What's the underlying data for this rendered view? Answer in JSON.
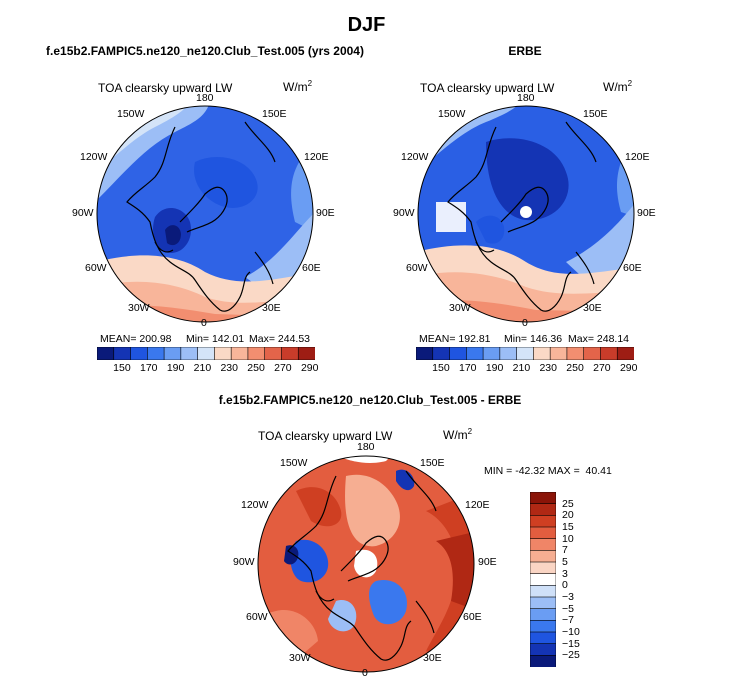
{
  "main_title": "DJF",
  "colors": {
    "abs_scale": [
      "#0a1a7a",
      "#1434b4",
      "#1f55e0",
      "#3a78ee",
      "#6a9df3",
      "#9cbef6",
      "#d4e4f8",
      "#fad9c6",
      "#f8b59a",
      "#f28e70",
      "#e3644a",
      "#c93c2a",
      "#9e1d14"
    ],
    "diff_scale": [
      "#0a1a7a",
      "#1434b4",
      "#1f55e0",
      "#3a78ee",
      "#6a9df3",
      "#9cbef6",
      "#cfe0f8",
      "#ffffff",
      "#fad5c4",
      "#f6ae92",
      "#f08567",
      "#e35d3f",
      "#cf3f22",
      "#b02814",
      "#8a1408"
    ]
  },
  "panels": [
    {
      "title": "f.e15b2.FAMPIC5.ne120_ne120.Club_Test.005 (yrs 2004)",
      "var_label": "TOA clearsky upward LW",
      "units_label": "W/m",
      "units_exp": "2",
      "lon_labels": {
        "top": "180",
        "tl": "150W",
        "tr": "150E",
        "ul": "120W",
        "ur": "120E",
        "l": "90W",
        "r": "90E",
        "ll": "60W",
        "lr": "60E",
        "bl": "30W",
        "br": "30E",
        "bottom": "0"
      },
      "mean_text": "MEAN= 200.98",
      "min_text": "Min= 142.01",
      "max_text": "Max= 244.53",
      "colorbar_ticks": [
        "150",
        "170",
        "190",
        "210",
        "230",
        "250",
        "270",
        "290"
      ]
    },
    {
      "title": "ERBE",
      "var_label": "TOA clearsky upward LW",
      "units_label": "W/m",
      "units_exp": "2",
      "lon_labels": {
        "top": "180",
        "tl": "150W",
        "tr": "150E",
        "ul": "120W",
        "ur": "120E",
        "l": "90W",
        "r": "90E",
        "ll": "60W",
        "lr": "60E",
        "bl": "30W",
        "br": "30E",
        "bottom": "0"
      },
      "mean_text": "MEAN= 192.81",
      "min_text": "Min= 146.36",
      "max_text": "Max= 248.14",
      "colorbar_ticks": [
        "150",
        "170",
        "190",
        "210",
        "230",
        "250",
        "270",
        "290"
      ]
    },
    {
      "title": "f.e15b2.FAMPIC5.ne120_ne120.Club_Test.005 - ERBE",
      "var_label": "TOA clearsky upward LW",
      "units_label": "W/m",
      "units_exp": "2",
      "lon_labels": {
        "top": "180",
        "tl": "150W",
        "tr": "150E",
        "ul": "120W",
        "ur": "120E",
        "l": "90W",
        "r": "90E",
        "ll": "60W",
        "lr": "60E",
        "bl": "30W",
        "br": "30E",
        "bottom": "0"
      },
      "minmax_text": "MIN = -42.32 MAX =  40.41",
      "colorbar_ticks": [
        "25",
        "20",
        "15",
        "10",
        "7",
        "5",
        "3",
        "0",
        "−3",
        "−5",
        "−7",
        "−10",
        "−15",
        "−25"
      ]
    }
  ],
  "chart_data": [
    {
      "type": "heatmap",
      "title": "f.e15b2.FAMPIC5.ne120_ne120.Club_Test.005 (yrs 2004)",
      "variable": "TOA clearsky upward LW",
      "units": "W/m2",
      "projection": "north polar stereographic",
      "mean": 200.98,
      "min": 142.01,
      "max": 244.53,
      "levels": [
        150,
        160,
        170,
        180,
        190,
        200,
        210,
        220,
        230,
        240,
        250,
        260,
        270,
        280,
        290
      ]
    },
    {
      "type": "heatmap",
      "title": "ERBE",
      "variable": "TOA clearsky upward LW",
      "units": "W/m2",
      "projection": "north polar stereographic",
      "mean": 192.81,
      "min": 146.36,
      "max": 248.14,
      "levels": [
        150,
        160,
        170,
        180,
        190,
        200,
        210,
        220,
        230,
        240,
        250,
        260,
        270,
        280,
        290
      ]
    },
    {
      "type": "heatmap",
      "title": "f.e15b2.FAMPIC5.ne120_ne120.Club_Test.005 - ERBE",
      "variable": "TOA clearsky upward LW",
      "units": "W/m2",
      "projection": "north polar stereographic",
      "min": -42.32,
      "max": 40.41,
      "levels": [
        -25,
        -15,
        -10,
        -7,
        -5,
        -3,
        0,
        3,
        5,
        7,
        10,
        15,
        20,
        25
      ]
    }
  ]
}
